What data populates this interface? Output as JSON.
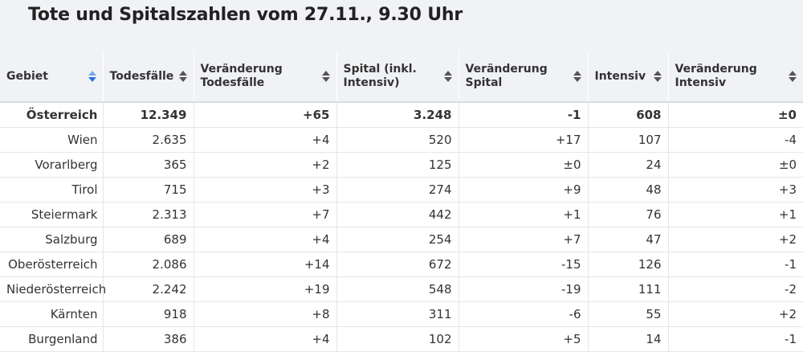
{
  "title": "Tote und Spitalszahlen vom 27.11., 9.30 Uhr",
  "columns": [
    {
      "label": "Gebiet",
      "active": true
    },
    {
      "label": "Todesfälle"
    },
    {
      "label": "Veränderung Todesfälle"
    },
    {
      "label": "Spital (inkl. Intensiv)"
    },
    {
      "label": "Veränderung Spital"
    },
    {
      "label": "Intensiv"
    },
    {
      "label": "Veränderung Intensiv"
    }
  ],
  "rows": [
    [
      "Österreich",
      "12.349",
      "+65",
      "3.248",
      "-1",
      "608",
      "±0"
    ],
    [
      "Wien",
      "2.635",
      "+4",
      "520",
      "+17",
      "107",
      "-4"
    ],
    [
      "Vorarlberg",
      "365",
      "+2",
      "125",
      "±0",
      "24",
      "±0"
    ],
    [
      "Tirol",
      "715",
      "+3",
      "274",
      "+9",
      "48",
      "+3"
    ],
    [
      "Steiermark",
      "2.313",
      "+7",
      "442",
      "+1",
      "76",
      "+1"
    ],
    [
      "Salzburg",
      "689",
      "+4",
      "254",
      "+7",
      "47",
      "+2"
    ],
    [
      "Oberösterreich",
      "2.086",
      "+14",
      "672",
      "-15",
      "126",
      "-1"
    ],
    [
      "Niederösterreich",
      "2.242",
      "+19",
      "548",
      "-19",
      "111",
      "-2"
    ],
    [
      "Kärnten",
      "918",
      "+8",
      "311",
      "-6",
      "55",
      "+2"
    ],
    [
      "Burgenland",
      "386",
      "+4",
      "102",
      "+5",
      "14",
      "-1"
    ]
  ],
  "icons": {
    "sort": "sort-arrows-icon"
  },
  "colors": {
    "header_bg": "#f1f2f6",
    "sort_active": "#2f6fd8"
  }
}
